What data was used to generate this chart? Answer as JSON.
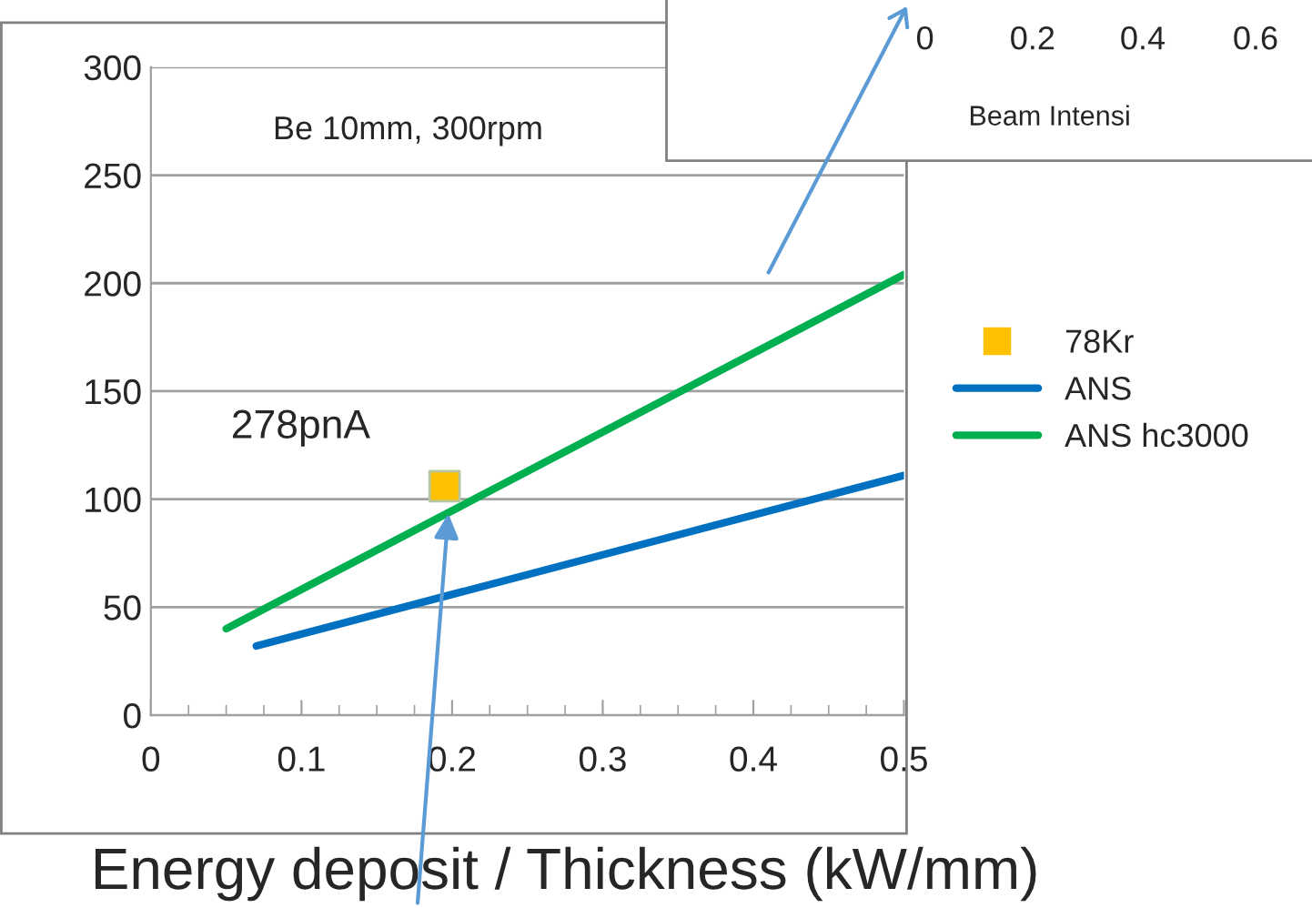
{
  "chart_data": {
    "type": "line",
    "xlabel": "Energy deposit / Thickness (kW/mm)",
    "annotations": [
      "Be 10mm, 300rpm",
      "278pnA",
      "0",
      "0.2",
      "0.4",
      "0.6",
      "Beam Intensi"
    ],
    "xlim": [
      0,
      0.5
    ],
    "xticks": [
      0,
      0.1,
      0.2,
      0.3,
      0.4,
      0.5
    ],
    "ylim": [
      0,
      300
    ],
    "yticks": [
      0,
      50,
      100,
      150,
      200,
      250,
      300
    ],
    "grid": "y",
    "legend": "right",
    "series": [
      {
        "name": "78Kr",
        "type": "scatter",
        "marker": "square",
        "color": "#ffc000",
        "x": [
          0.195
        ],
        "values": [
          106
        ]
      },
      {
        "name": "ANS",
        "type": "line",
        "color": "#0070c0",
        "x": [
          0.07,
          0.5
        ],
        "values": [
          32,
          111
        ]
      },
      {
        "name": "ANS hc3000",
        "type": "line",
        "color": "#00b050",
        "x": [
          0.05,
          0.5
        ],
        "values": [
          40,
          204
        ]
      }
    ]
  }
}
